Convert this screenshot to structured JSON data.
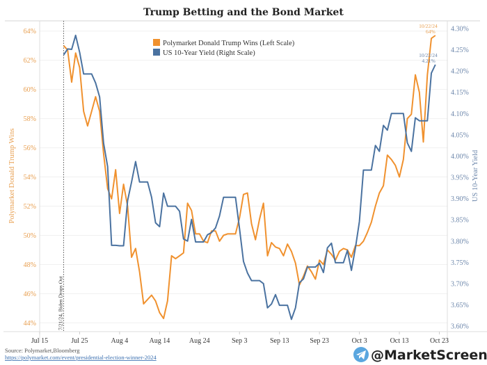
{
  "chart_data": {
    "type": "line",
    "title": "Trump Betting and the Bond Market",
    "ylabel_left": "Polymarket Donald Trump Wins",
    "ylabel_right": "US 10-Year Yield",
    "ylim_left": [
      43.4,
      64.7
    ],
    "ylim_right": [
      3.587,
      4.318
    ],
    "yticks_left": [
      "64%",
      "62%",
      "60%",
      "58%",
      "56%",
      "54%",
      "52%",
      "50%",
      "48%",
      "46%",
      "44%"
    ],
    "yticks_left_values": [
      64,
      62,
      60,
      58,
      56,
      54,
      52,
      50,
      48,
      46,
      44
    ],
    "yticks_right": [
      "4.30%",
      "4.25%",
      "4.20%",
      "4.15%",
      "4.10%",
      "4.05%",
      "4.00%",
      "3.95%",
      "3.90%",
      "3.85%",
      "3.80%",
      "3.75%",
      "3.70%",
      "3.65%",
      "3.60%"
    ],
    "yticks_right_values": [
      4.3,
      4.25,
      4.2,
      4.15,
      4.1,
      4.05,
      4.0,
      3.95,
      3.9,
      3.85,
      3.8,
      3.75,
      3.7,
      3.65,
      3.6
    ],
    "xlim": [
      "2024-07-15",
      "2024-10-25"
    ],
    "xticks": [
      "Jul 15",
      "Jul 25",
      "Aug 4",
      "Aug 14",
      "Aug 24",
      "Sep 3",
      "Sep 13",
      "Sep 23",
      "Oct 3",
      "Oct 13",
      "Oct 23"
    ],
    "xticks_dates": [
      "2024-07-15",
      "2024-07-25",
      "2024-08-04",
      "2024-08-14",
      "2024-08-24",
      "2024-09-03",
      "2024-09-13",
      "2024-09-23",
      "2024-10-03",
      "2024-10-13",
      "2024-10-23"
    ],
    "grid": "horizontal",
    "legend_placement": "top-center",
    "x": [
      "2024-07-21",
      "2024-07-22",
      "2024-07-23",
      "2024-07-24",
      "2024-07-25",
      "2024-07-26",
      "2024-07-27",
      "2024-07-28",
      "2024-07-29",
      "2024-07-30",
      "2024-07-31",
      "2024-08-01",
      "2024-08-02",
      "2024-08-03",
      "2024-08-04",
      "2024-08-05",
      "2024-08-06",
      "2024-08-07",
      "2024-08-08",
      "2024-08-09",
      "2024-08-10",
      "2024-08-11",
      "2024-08-12",
      "2024-08-13",
      "2024-08-14",
      "2024-08-15",
      "2024-08-16",
      "2024-08-17",
      "2024-08-18",
      "2024-08-19",
      "2024-08-20",
      "2024-08-21",
      "2024-08-22",
      "2024-08-23",
      "2024-08-24",
      "2024-08-25",
      "2024-08-26",
      "2024-08-27",
      "2024-08-28",
      "2024-08-29",
      "2024-08-30",
      "2024-08-31",
      "2024-09-01",
      "2024-09-02",
      "2024-09-03",
      "2024-09-04",
      "2024-09-05",
      "2024-09-06",
      "2024-09-07",
      "2024-09-08",
      "2024-09-09",
      "2024-09-10",
      "2024-09-11",
      "2024-09-12",
      "2024-09-13",
      "2024-09-14",
      "2024-09-15",
      "2024-09-16",
      "2024-09-17",
      "2024-09-18",
      "2024-09-19",
      "2024-09-20",
      "2024-09-21",
      "2024-09-22",
      "2024-09-23",
      "2024-09-24",
      "2024-09-25",
      "2024-09-26",
      "2024-09-27",
      "2024-09-28",
      "2024-09-29",
      "2024-09-30",
      "2024-10-01",
      "2024-10-02",
      "2024-10-03",
      "2024-10-04",
      "2024-10-05",
      "2024-10-06",
      "2024-10-07",
      "2024-10-08",
      "2024-10-09",
      "2024-10-10",
      "2024-10-11",
      "2024-10-12",
      "2024-10-13",
      "2024-10-14",
      "2024-10-15",
      "2024-10-16",
      "2024-10-17",
      "2024-10-18",
      "2024-10-19",
      "2024-10-20",
      "2024-10-21",
      "2024-10-22"
    ],
    "series": [
      {
        "name": "Polymarket Donald Trump Wins (Left Scale)",
        "axis": "left",
        "color": "#f0912e",
        "values": [
          63.0,
          62.7,
          60.5,
          62.5,
          61.5,
          58.5,
          57.5,
          58.5,
          59.5,
          58.5,
          55.6,
          53.2,
          52.5,
          54.5,
          51.5,
          53.5,
          52.0,
          48.5,
          49.1,
          47.5,
          45.3,
          45.6,
          45.9,
          45.5,
          44.7,
          44.3,
          45.5,
          48.6,
          48.4,
          48.6,
          48.8,
          52.2,
          51.7,
          50.1,
          50.1,
          49.6,
          49.5,
          50.3,
          50.3,
          49.6,
          50.0,
          50.1,
          50.1,
          50.1,
          51.2,
          52.8,
          52.9,
          50.8,
          49.7,
          51.1,
          52.2,
          48.6,
          49.5,
          49.2,
          49.1,
          48.6,
          49.4,
          48.9,
          48.1,
          46.6,
          47.2,
          47.9,
          47.5,
          47.0,
          48.3,
          48.0,
          49.0,
          48.7,
          48.3,
          48.9,
          49.1,
          49.0,
          48.5,
          49.3,
          49.3,
          49.6,
          50.2,
          50.9,
          52.0,
          52.9,
          53.4,
          55.5,
          55.2,
          54.8,
          54.0,
          55.2,
          58.0,
          58.3,
          61.0,
          59.8,
          56.4,
          61.0,
          63.5,
          63.7
        ]
      },
      {
        "name": "US 10-Year Yield (Right Scale)",
        "axis": "right",
        "color": "#4a72a0",
        "values": [
          4.238,
          4.252,
          4.251,
          4.284,
          4.244,
          4.193,
          4.193,
          4.193,
          4.172,
          4.139,
          4.03,
          3.975,
          3.79,
          3.79,
          3.789,
          3.789,
          3.895,
          3.939,
          3.987,
          3.939,
          3.939,
          3.939,
          3.903,
          3.843,
          3.834,
          3.913,
          3.882,
          3.882,
          3.882,
          3.87,
          3.805,
          3.8,
          3.851,
          3.798,
          3.798,
          3.798,
          3.815,
          3.82,
          3.831,
          3.859,
          3.903,
          3.903,
          3.903,
          3.903,
          3.829,
          3.752,
          3.725,
          3.707,
          3.707,
          3.707,
          3.7,
          3.643,
          3.652,
          3.674,
          3.649,
          3.649,
          3.649,
          3.616,
          3.643,
          3.702,
          3.711,
          3.739,
          3.739,
          3.739,
          3.748,
          3.726,
          3.784,
          3.795,
          3.749,
          3.749,
          3.749,
          3.778,
          3.731,
          3.784,
          3.846,
          3.967,
          3.967,
          3.967,
          4.025,
          4.011,
          4.072,
          4.061,
          4.1,
          4.1,
          4.1,
          4.1,
          4.031,
          4.011,
          4.09,
          4.083,
          4.083,
          4.083,
          4.195,
          4.215
        ]
      }
    ],
    "annotations": [
      {
        "date": "2024-07-21",
        "text": "7/21/24, Biden Drops Out",
        "style": "dotted vertical line"
      },
      {
        "date": "2024-10-22",
        "series": 0,
        "date_label": "10/22/24",
        "value_label": "64%"
      },
      {
        "date": "2024-10-22",
        "series": 1,
        "date_label": "10/22/24",
        "value_label": "4.21%"
      }
    ]
  },
  "footer": {
    "source": "Source: Polymarket,Bloomberg",
    "link": "https://polymarket.com/event/presidential-election-winner-2024",
    "brand": "@MarketScreen",
    "brand_icon": "telegram-icon"
  }
}
